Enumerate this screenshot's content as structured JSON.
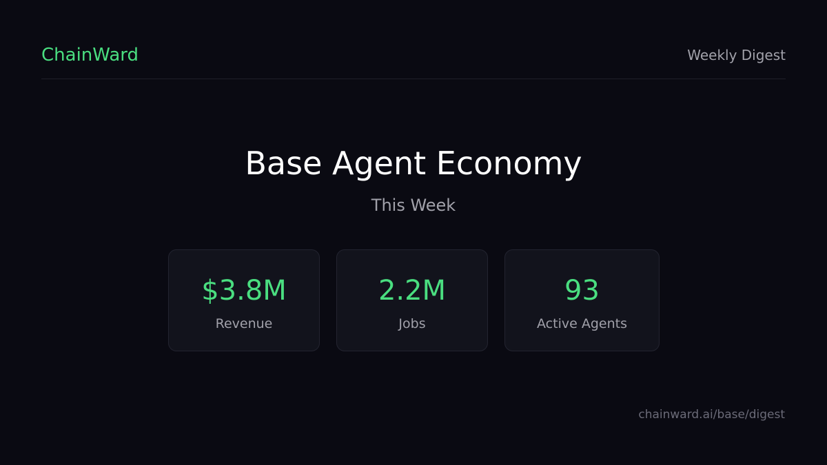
{
  "header": {
    "brand": "ChainWard",
    "digest_label": "Weekly Digest"
  },
  "main": {
    "title": "Base Agent Economy",
    "subtitle": "This Week"
  },
  "stats": [
    {
      "value": "$3.8M",
      "label": "Revenue"
    },
    {
      "value": "2.2M",
      "label": "Jobs"
    },
    {
      "value": "93",
      "label": "Active Agents"
    }
  ],
  "footer": {
    "url": "chainward.ai/base/digest"
  },
  "colors": {
    "background": "#0a0a12",
    "accent": "#4ade80",
    "card": "#12131c",
    "muted_text": "#a1a1aa"
  }
}
